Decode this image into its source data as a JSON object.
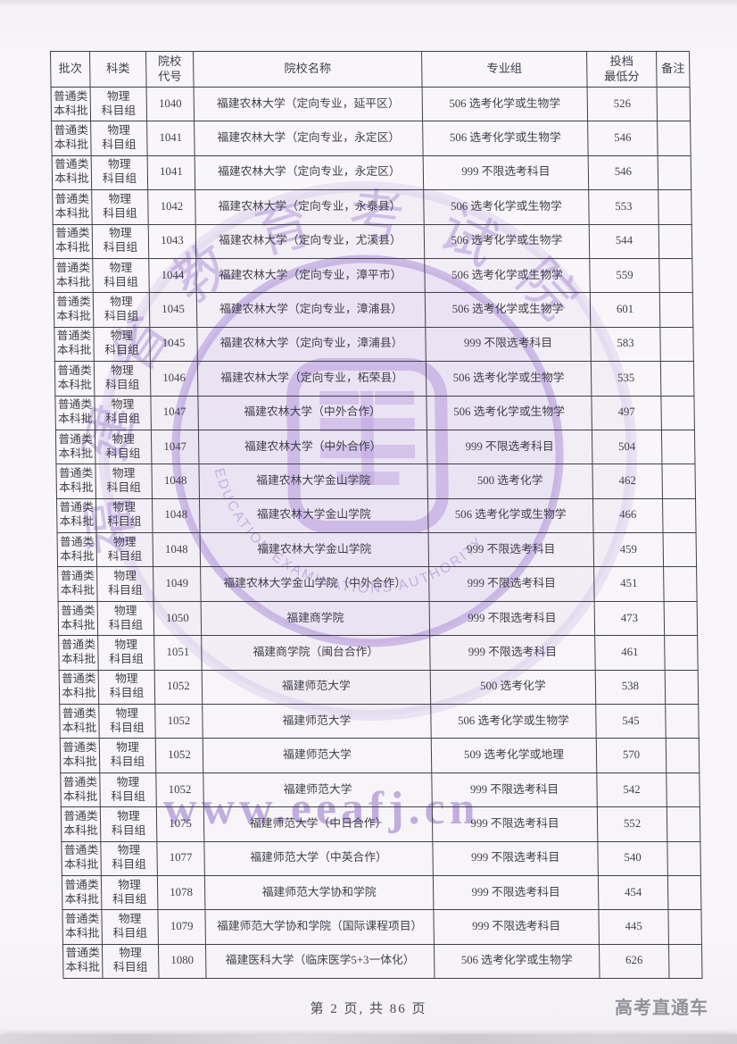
{
  "page": {
    "footer": "第 2 页, 共 86 页",
    "brand": "高考直通车"
  },
  "watermark": {
    "url": "www.eeafj.cn",
    "seal_chars": "福建省教育考试院",
    "seal_text_en": "EDUCATION EXAMINATIONS AUTHORITY",
    "color": "#a688d6"
  },
  "table": {
    "headers": [
      "批次",
      "科类",
      "院校\n代号",
      "院校名称",
      "专业组",
      "投档\n最低分",
      "备注"
    ],
    "rows": [
      {
        "batch": "普通类\n本科批",
        "category": "物理\n科目组",
        "code": "1040",
        "name": "福建农林大学（定向专业，延平区）",
        "group": "506 选考化学或生物学",
        "score": "526",
        "remark": ""
      },
      {
        "batch": "普通类\n本科批",
        "category": "物理\n科目组",
        "code": "1041",
        "name": "福建农林大学（定向专业，永定区）",
        "group": "506 选考化学或生物学",
        "score": "546",
        "remark": ""
      },
      {
        "batch": "普通类\n本科批",
        "category": "物理\n科目组",
        "code": "1041",
        "name": "福建农林大学（定向专业，永定区）",
        "group": "999 不限选考科目",
        "score": "546",
        "remark": ""
      },
      {
        "batch": "普通类\n本科批",
        "category": "物理\n科目组",
        "code": "1042",
        "name": "福建农林大学（定向专业，永泰县）",
        "group": "506 选考化学或生物学",
        "score": "553",
        "remark": ""
      },
      {
        "batch": "普通类\n本科批",
        "category": "物理\n科目组",
        "code": "1043",
        "name": "福建农林大学（定向专业，尤溪县）",
        "group": "506 选考化学或生物学",
        "score": "544",
        "remark": ""
      },
      {
        "batch": "普通类\n本科批",
        "category": "物理\n科目组",
        "code": "1044",
        "name": "福建农林大学（定向专业，漳平市）",
        "group": "506 选考化学或生物学",
        "score": "559",
        "remark": ""
      },
      {
        "batch": "普通类\n本科批",
        "category": "物理\n科目组",
        "code": "1045",
        "name": "福建农林大学（定向专业，漳浦县）",
        "group": "506 选考化学或生物学",
        "score": "601",
        "remark": ""
      },
      {
        "batch": "普通类\n本科批",
        "category": "物理\n科目组",
        "code": "1045",
        "name": "福建农林大学（定向专业，漳浦县）",
        "group": "999 不限选考科目",
        "score": "583",
        "remark": ""
      },
      {
        "batch": "普通类\n本科批",
        "category": "物理\n科目组",
        "code": "1046",
        "name": "福建农林大学（定向专业，柘荣县）",
        "group": "506 选考化学或生物学",
        "score": "535",
        "remark": ""
      },
      {
        "batch": "普通类\n本科批",
        "category": "物理\n科目组",
        "code": "1047",
        "name": "福建农林大学（中外合作）",
        "group": "506 选考化学或生物学",
        "score": "497",
        "remark": ""
      },
      {
        "batch": "普通类\n本科批",
        "category": "物理\n科目组",
        "code": "1047",
        "name": "福建农林大学（中外合作）",
        "group": "999 不限选考科目",
        "score": "504",
        "remark": ""
      },
      {
        "batch": "普通类\n本科批",
        "category": "物理\n科目组",
        "code": "1048",
        "name": "福建农林大学金山学院",
        "group": "500 选考化学",
        "score": "462",
        "remark": ""
      },
      {
        "batch": "普通类\n本科批",
        "category": "物理\n科目组",
        "code": "1048",
        "name": "福建农林大学金山学院",
        "group": "506 选考化学或生物学",
        "score": "466",
        "remark": ""
      },
      {
        "batch": "普通类\n本科批",
        "category": "物理\n科目组",
        "code": "1048",
        "name": "福建农林大学金山学院",
        "group": "999 不限选考科目",
        "score": "459",
        "remark": ""
      },
      {
        "batch": "普通类\n本科批",
        "category": "物理\n科目组",
        "code": "1049",
        "name": "福建农林大学金山学院（中外合作）",
        "group": "999 不限选考科目",
        "score": "451",
        "remark": ""
      },
      {
        "batch": "普通类\n本科批",
        "category": "物理\n科目组",
        "code": "1050",
        "name": "福建商学院",
        "group": "999 不限选考科目",
        "score": "473",
        "remark": ""
      },
      {
        "batch": "普通类\n本科批",
        "category": "物理\n科目组",
        "code": "1051",
        "name": "福建商学院（闽台合作）",
        "group": "999 不限选考科目",
        "score": "461",
        "remark": ""
      },
      {
        "batch": "普通类\n本科批",
        "category": "物理\n科目组",
        "code": "1052",
        "name": "福建师范大学",
        "group": "500 选考化学",
        "score": "538",
        "remark": ""
      },
      {
        "batch": "普通类\n本科批",
        "category": "物理\n科目组",
        "code": "1052",
        "name": "福建师范大学",
        "group": "506 选考化学或生物学",
        "score": "545",
        "remark": ""
      },
      {
        "batch": "普通类\n本科批",
        "category": "物理\n科目组",
        "code": "1052",
        "name": "福建师范大学",
        "group": "509 选考化学或地理",
        "score": "570",
        "remark": ""
      },
      {
        "batch": "普通类\n本科批",
        "category": "物理\n科目组",
        "code": "1052",
        "name": "福建师范大学",
        "group": "999 不限选考科目",
        "score": "542",
        "remark": ""
      },
      {
        "batch": "普通类\n本科批",
        "category": "物理\n科目组",
        "code": "1075",
        "name": "福建师范大学（中日合作）",
        "group": "999 不限选考科目",
        "score": "552",
        "remark": ""
      },
      {
        "batch": "普通类\n本科批",
        "category": "物理\n科目组",
        "code": "1077",
        "name": "福建师范大学（中英合作）",
        "group": "999 不限选考科目",
        "score": "540",
        "remark": ""
      },
      {
        "batch": "普通类\n本科批",
        "category": "物理\n科目组",
        "code": "1078",
        "name": "福建师范大学协和学院",
        "group": "999 不限选考科目",
        "score": "454",
        "remark": ""
      },
      {
        "batch": "普通类\n本科批",
        "category": "物理\n科目组",
        "code": "1079",
        "name": "福建师范大学协和学院（国际课程项目）",
        "group": "999 不限选考科目",
        "score": "445",
        "remark": ""
      },
      {
        "batch": "普通类\n本科批",
        "category": "物理\n科目组",
        "code": "1080",
        "name": "福建医科大学（临床医学5+3一体化）",
        "group": "506 选考化学或生物学",
        "score": "626",
        "remark": ""
      }
    ]
  }
}
